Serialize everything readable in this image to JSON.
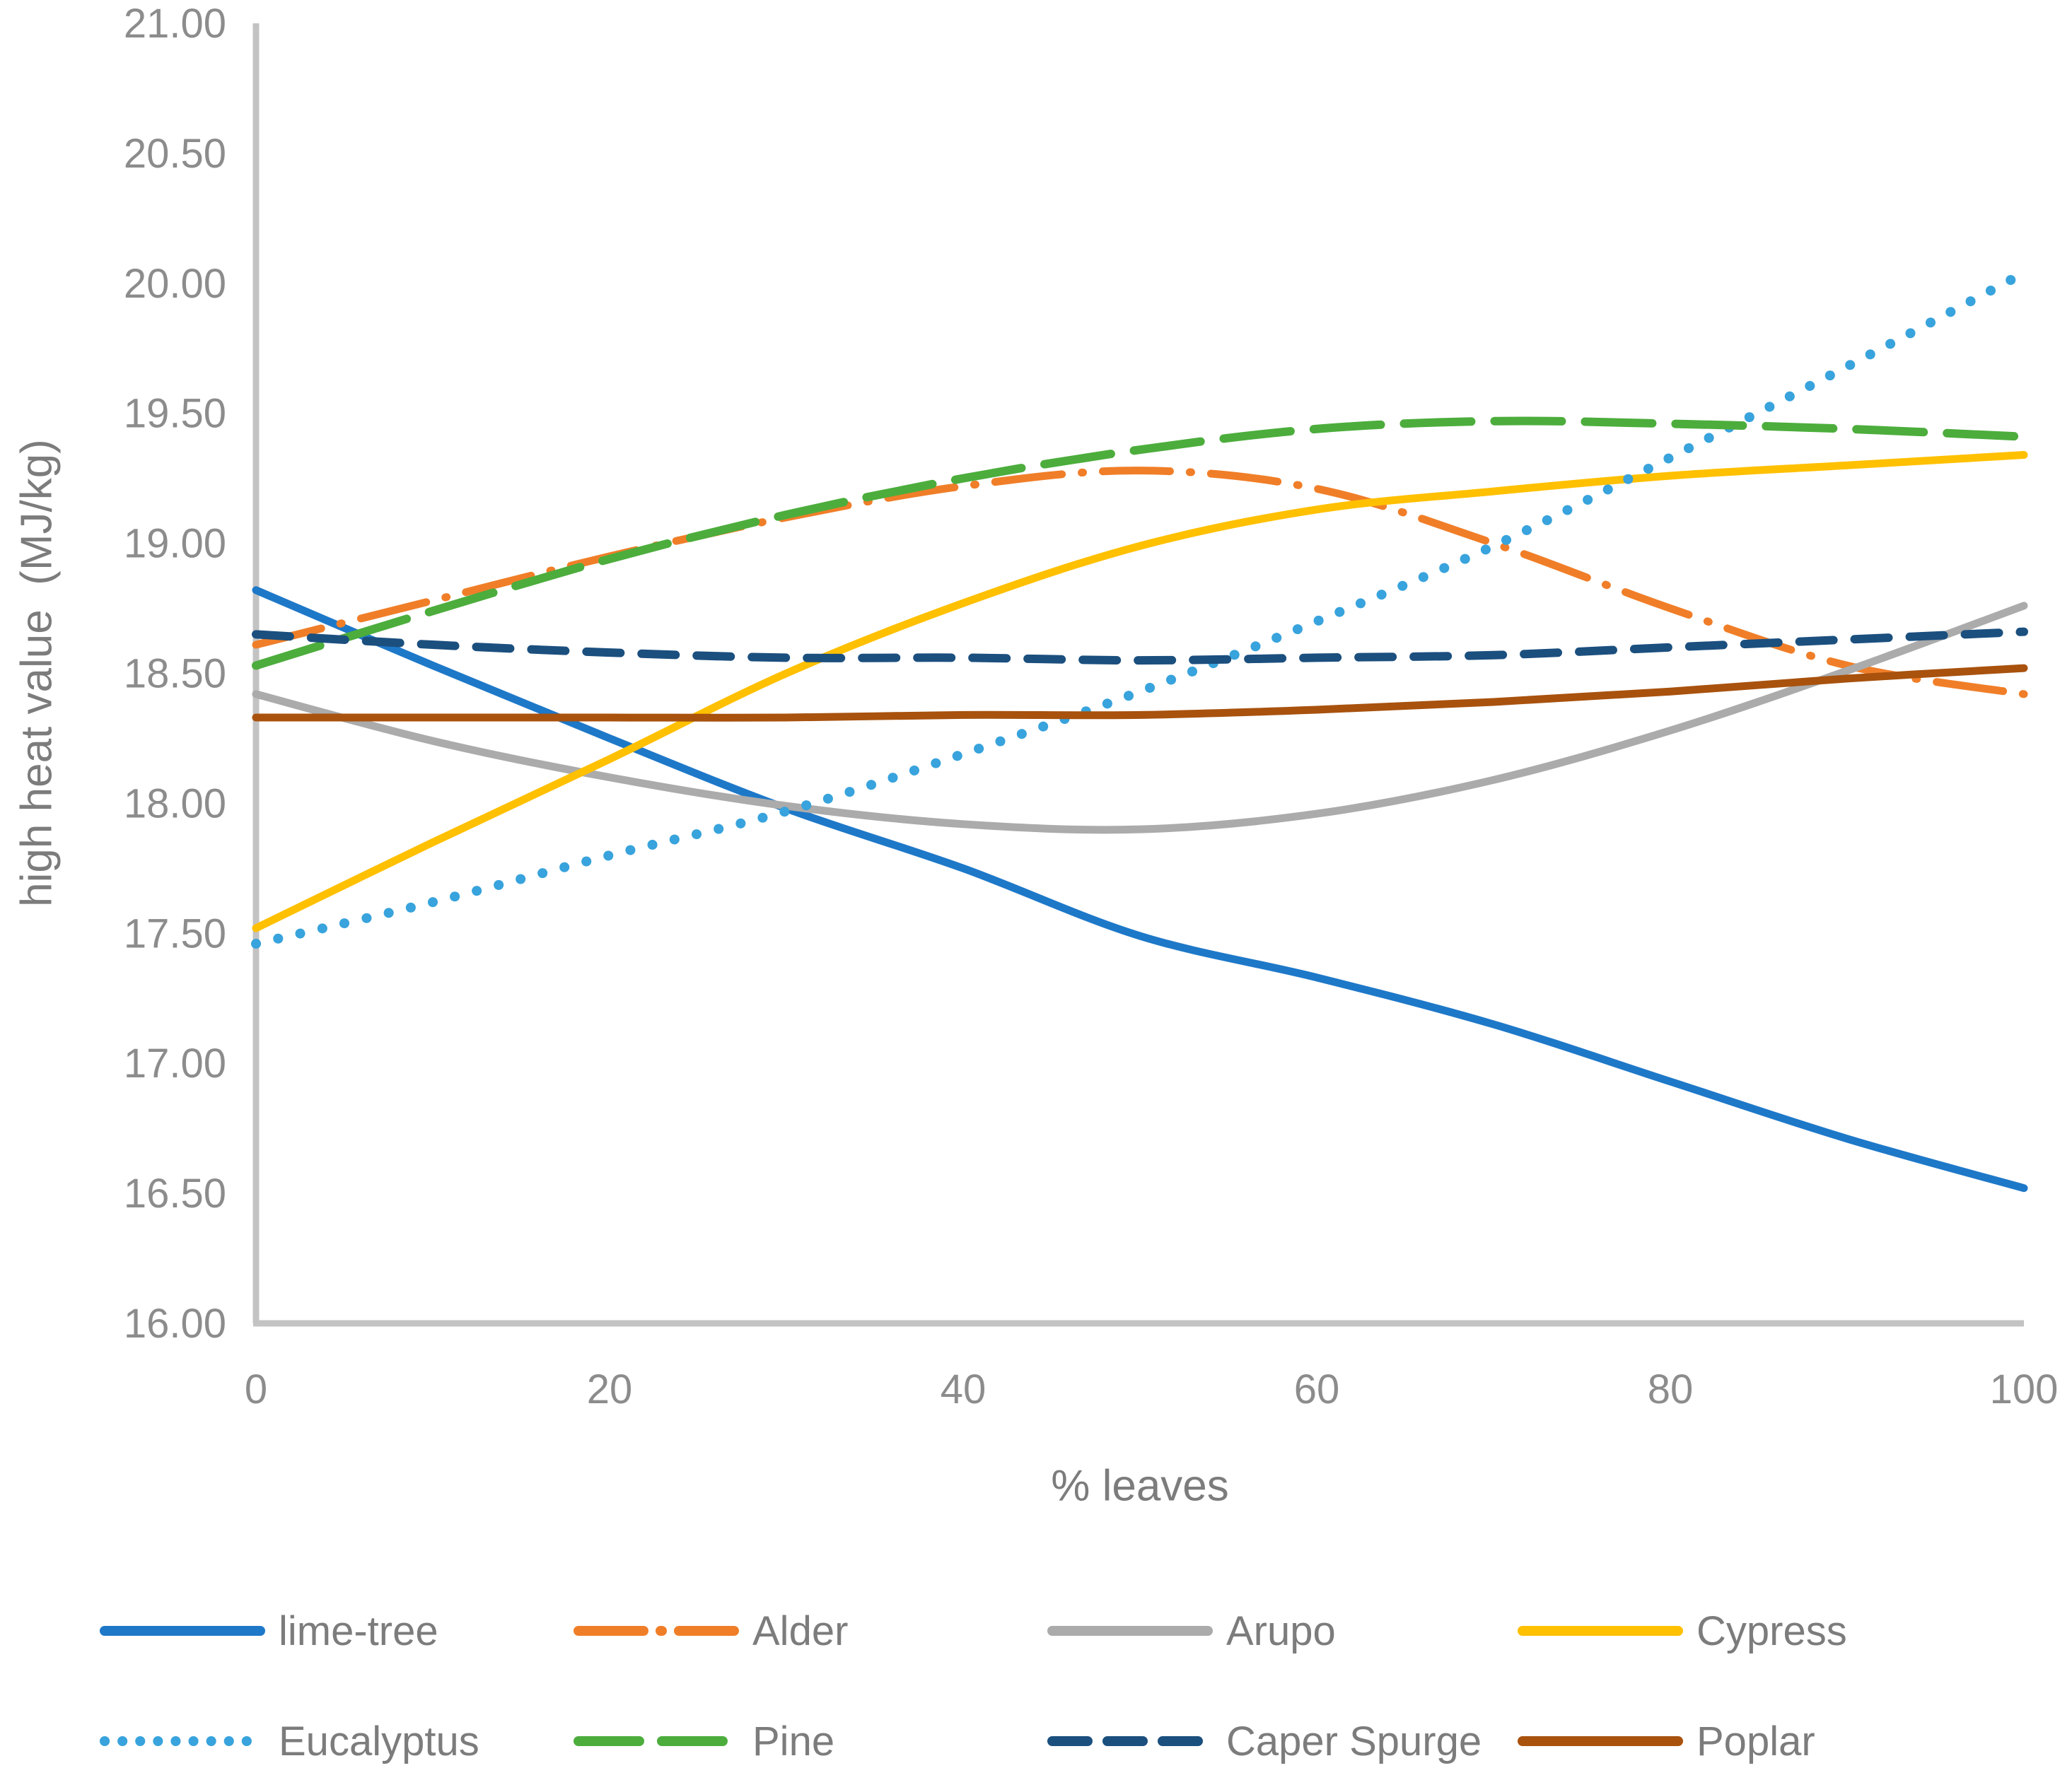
{
  "figure": {
    "background": "#ffffff",
    "axis_color": "#c3c3c3",
    "tick_label_color": "#8c8c8c",
    "title_color": "#7c7c7c"
  },
  "chart_data": {
    "type": "line",
    "title": "",
    "xlabel": "% leaves",
    "ylabel": "high heat value  (MJ/kg)",
    "xlim": [
      0,
      100
    ],
    "ylim": [
      16.0,
      21.0
    ],
    "grid": false,
    "legend_position": "bottom",
    "xticks": [
      0,
      20,
      40,
      60,
      80,
      100
    ],
    "xtick_labels": [
      "0",
      "20",
      "40",
      "60",
      "80",
      "100"
    ],
    "yticks": [
      16.0,
      16.5,
      17.0,
      17.5,
      18.0,
      18.5,
      19.0,
      19.5,
      20.0,
      20.5,
      21.0
    ],
    "ytick_labels": [
      "16.00",
      "16.50",
      "17.00",
      "17.50",
      "18.00",
      "18.50",
      "19.00",
      "19.50",
      "20.00",
      "20.50",
      "21.00"
    ],
    "x": [
      0,
      10,
      20,
      30,
      40,
      50,
      60,
      70,
      80,
      90,
      100
    ],
    "series": [
      {
        "name": "lime-tree",
        "color": "#1e78c8",
        "line_style": "solid",
        "values": [
          18.82,
          18.53,
          18.25,
          17.98,
          17.75,
          17.49,
          17.33,
          17.15,
          16.93,
          16.71,
          16.52
        ]
      },
      {
        "name": "Alder",
        "color": "#f07e28",
        "line_style": "dash-dot",
        "values": [
          18.61,
          18.78,
          18.95,
          19.1,
          19.22,
          19.28,
          19.21,
          19.0,
          18.75,
          18.53,
          18.42
        ]
      },
      {
        "name": "Arupo",
        "color": "#ababab",
        "line_style": "solid",
        "values": [
          18.42,
          18.24,
          18.1,
          17.99,
          17.92,
          17.9,
          17.96,
          18.09,
          18.28,
          18.51,
          18.76
        ]
      },
      {
        "name": "Cypress",
        "color": "#ffc000",
        "line_style": "solid",
        "values": [
          17.52,
          17.85,
          18.17,
          18.5,
          18.77,
          18.99,
          19.13,
          19.2,
          19.26,
          19.3,
          19.34
        ]
      },
      {
        "name": "Eucalyptus",
        "color": "#38a3dc",
        "line_style": "dotted",
        "values": [
          17.46,
          17.62,
          17.8,
          17.97,
          18.19,
          18.43,
          18.7,
          18.99,
          19.33,
          19.68,
          20.04
        ]
      },
      {
        "name": "Pine",
        "color": "#4cad3c",
        "line_style": "dashed",
        "values": [
          18.53,
          18.74,
          18.94,
          19.11,
          19.25,
          19.36,
          19.44,
          19.47,
          19.46,
          19.44,
          19.41
        ]
      },
      {
        "name": "Caper Spurge",
        "color": "#1b4f7e",
        "line_style": "dashed-short",
        "values": [
          18.65,
          18.61,
          18.58,
          18.56,
          18.56,
          18.55,
          18.56,
          18.57,
          18.6,
          18.63,
          18.66
        ]
      },
      {
        "name": "Poplar",
        "color": "#a8520e",
        "line_style": "solid",
        "values": [
          18.33,
          18.33,
          18.33,
          18.33,
          18.34,
          18.34,
          18.36,
          18.39,
          18.43,
          18.48,
          18.52
        ]
      }
    ]
  }
}
